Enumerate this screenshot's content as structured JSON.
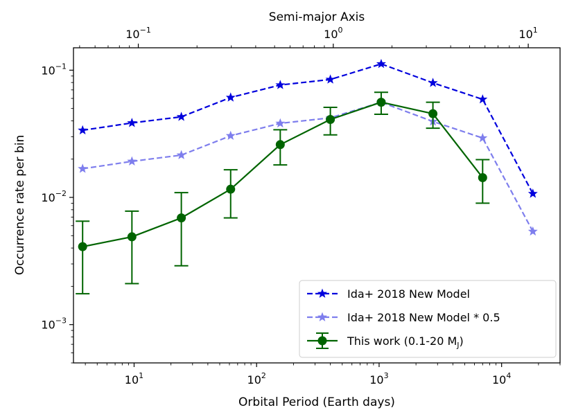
{
  "chart_data": {
    "type": "line",
    "xscale": "log",
    "yscale": "log",
    "xlabel": "Orbital Period (Earth days)",
    "ylabel": "Occurrence rate per bin",
    "x2label": "Semi-major Axis",
    "xlim": [
      3.2,
      30000
    ],
    "ylim": [
      0.0005,
      0.15
    ],
    "x2lim": [
      0.0465,
      14.56
    ],
    "x_ticks": [
      {
        "value": 10,
        "base": "10",
        "exp": "1"
      },
      {
        "value": 100,
        "base": "10",
        "exp": "2"
      },
      {
        "value": 1000,
        "base": "10",
        "exp": "3"
      },
      {
        "value": 10000,
        "base": "10",
        "exp": "4"
      }
    ],
    "y_ticks": [
      {
        "value": 0.001,
        "base": "10",
        "exp": "−3"
      },
      {
        "value": 0.01,
        "base": "10",
        "exp": "−2"
      },
      {
        "value": 0.1,
        "base": "10",
        "exp": "−1"
      }
    ],
    "x2_ticks": [
      {
        "value": 0.1,
        "base": "10",
        "exp": "−1"
      },
      {
        "value": 1,
        "base": "10",
        "exp": "0"
      },
      {
        "value": 10,
        "base": "10",
        "exp": "1"
      }
    ],
    "series": [
      {
        "name": "Ida+ 2018 New Model",
        "color": "#0000dd",
        "opacity": 1,
        "marker": "star",
        "linestyle": "dashed",
        "x": [
          3.8,
          9.6,
          24.3,
          61.4,
          156,
          400,
          1040,
          2750,
          7000,
          18000
        ],
        "y": [
          0.0337,
          0.0385,
          0.043,
          0.061,
          0.0765,
          0.0845,
          0.112,
          0.0795,
          0.059,
          0.0107
        ]
      },
      {
        "name": "Ida+ 2018 New Model * 0.5",
        "color": "#0000dd",
        "opacity": 0.5,
        "marker": "star",
        "linestyle": "dashed",
        "x": [
          3.8,
          9.6,
          24.3,
          61.4,
          156,
          400,
          1040,
          2750,
          7000,
          18000
        ],
        "y": [
          0.0168,
          0.0192,
          0.0215,
          0.0305,
          0.0382,
          0.0422,
          0.056,
          0.0395,
          0.0293,
          0.0054
        ]
      },
      {
        "name": "This work (0.1-20 M",
        "name_sub": "J",
        "name_end": ")",
        "color": "#006400",
        "opacity": 1,
        "marker": "circle",
        "linestyle": "solid",
        "x": [
          3.8,
          9.6,
          24.3,
          61.4,
          156,
          400,
          1040,
          2750,
          7000
        ],
        "y": [
          0.0041,
          0.0049,
          0.0069,
          0.0116,
          0.026,
          0.041,
          0.056,
          0.0455,
          0.0143
        ],
        "y_low": [
          0.00175,
          0.0021,
          0.0029,
          0.0069,
          0.018,
          0.031,
          0.045,
          0.035,
          0.009
        ],
        "y_high": [
          0.0065,
          0.0078,
          0.0109,
          0.0165,
          0.034,
          0.051,
          0.067,
          0.056,
          0.0198
        ]
      }
    ],
    "legend_position": "lower right"
  }
}
